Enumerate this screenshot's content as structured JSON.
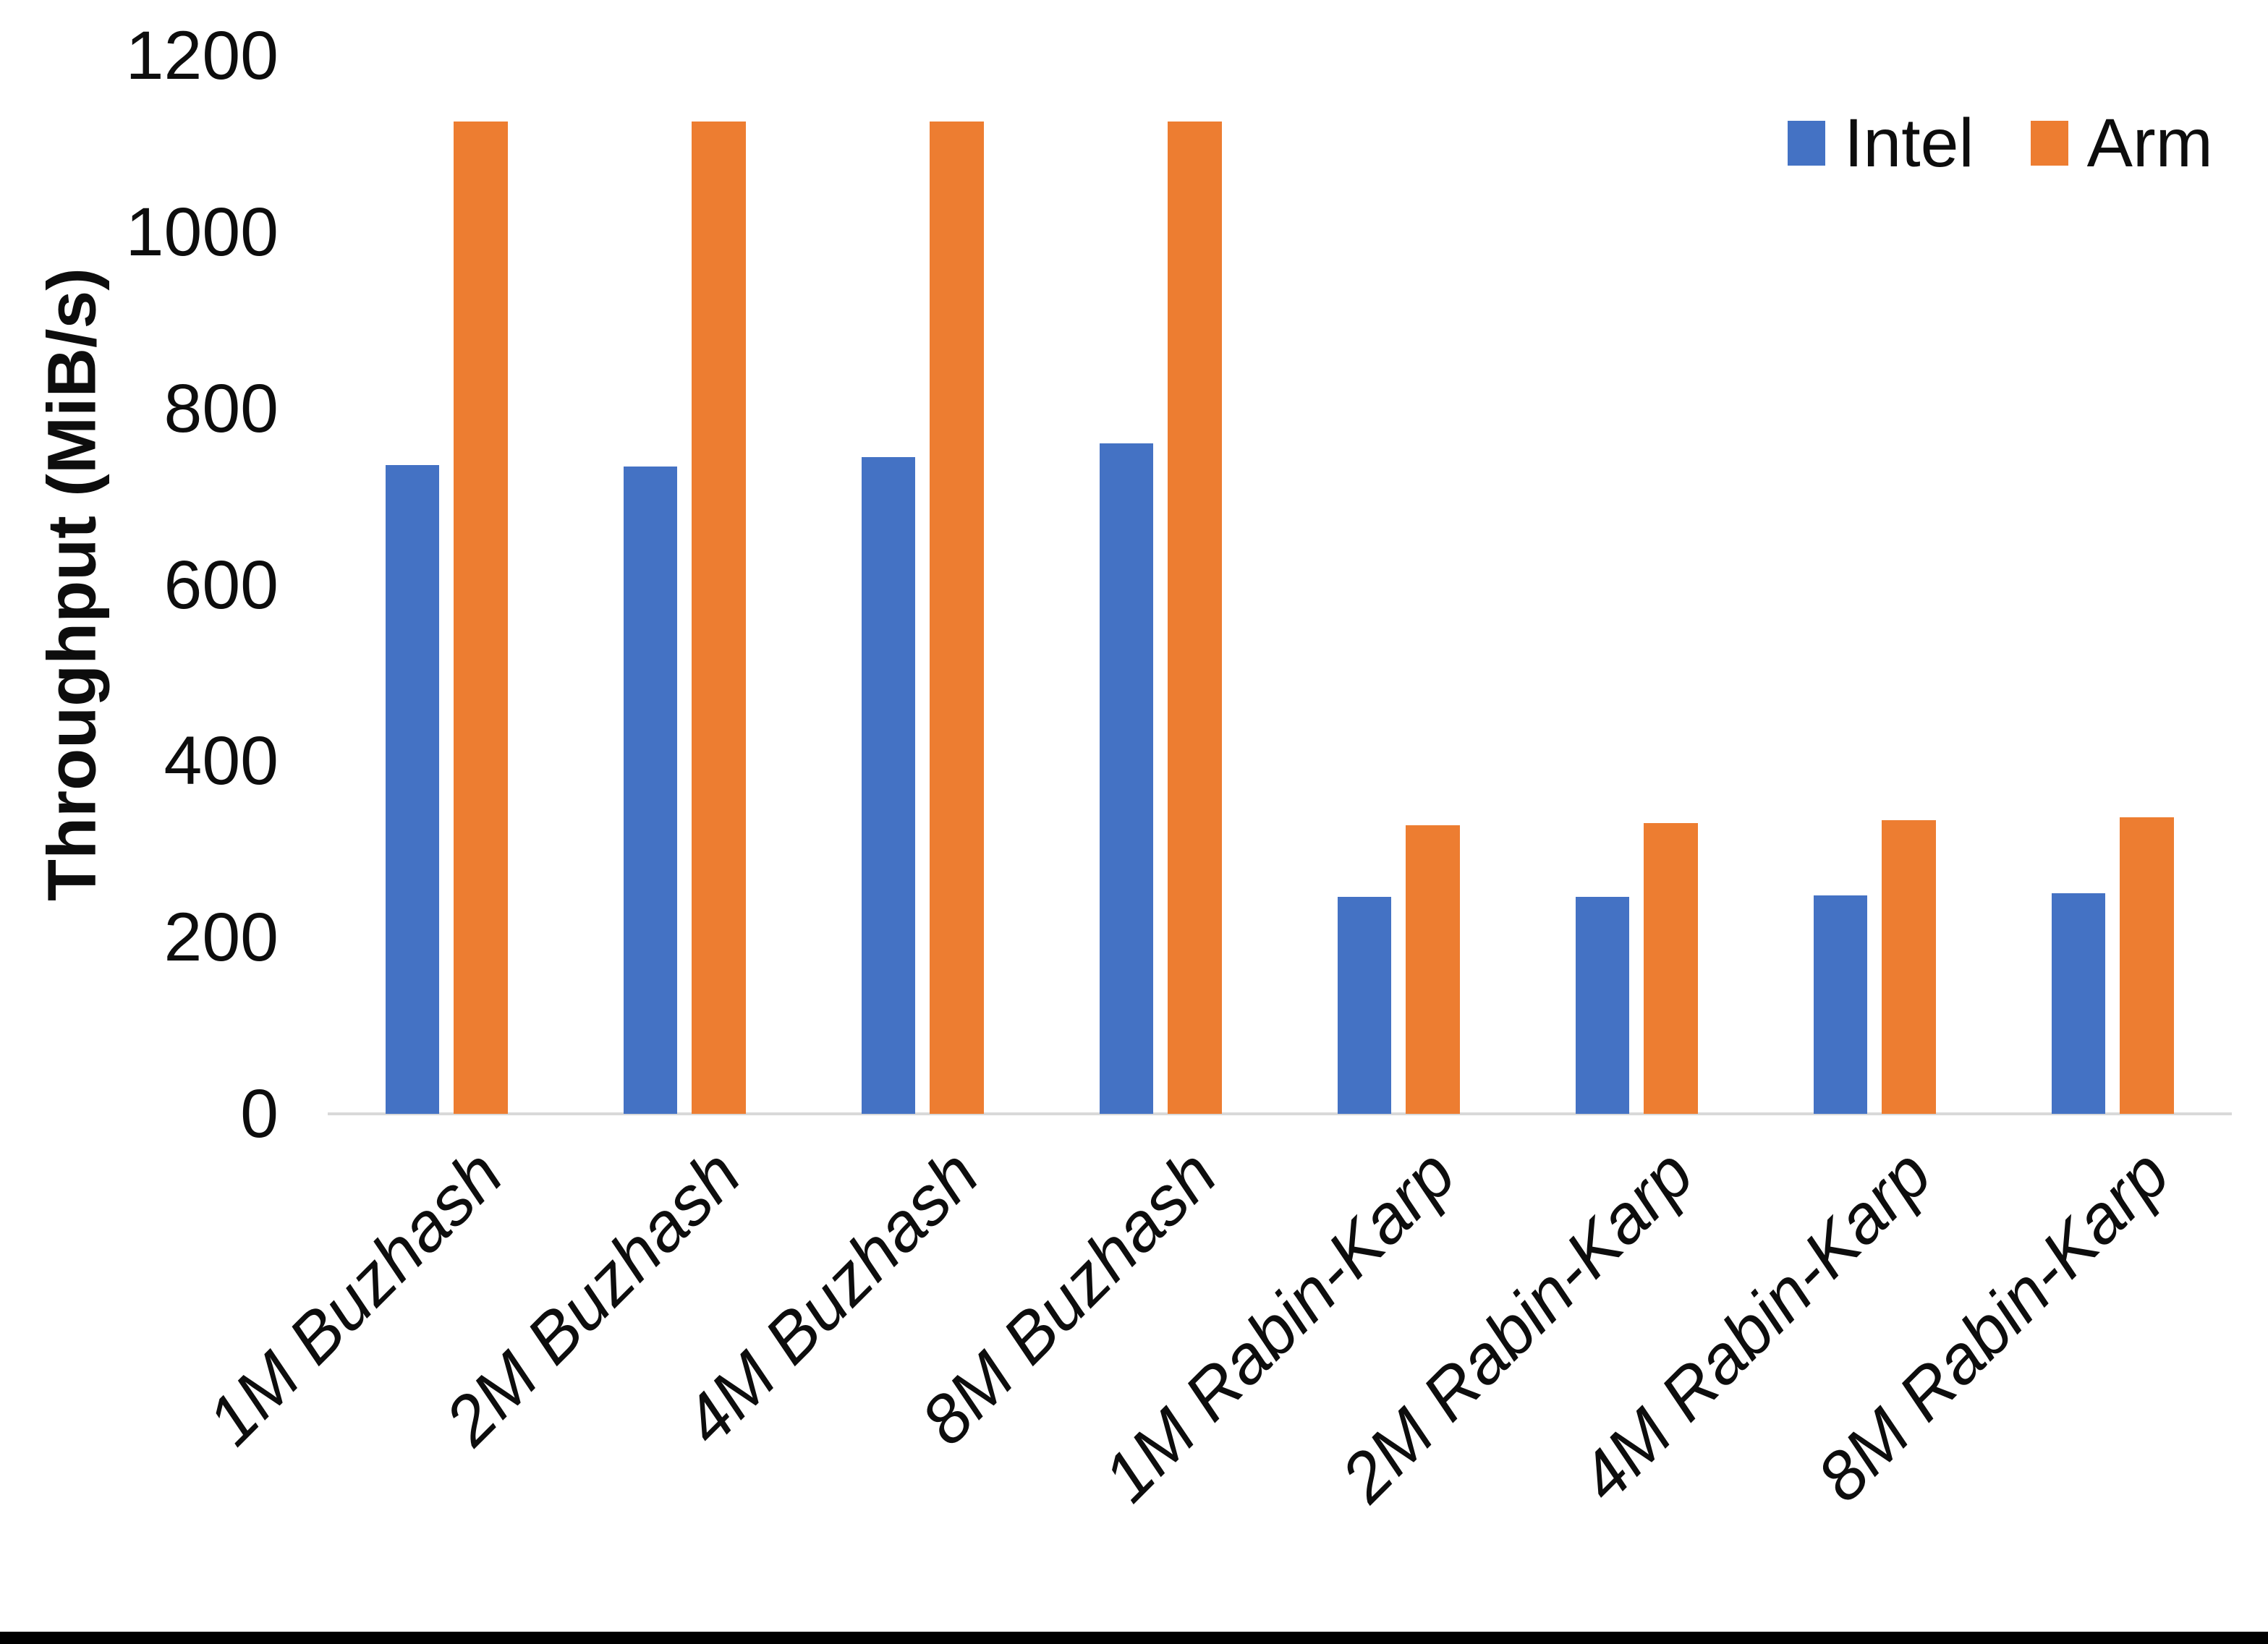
{
  "chart_data": {
    "type": "bar",
    "title": "",
    "xlabel": "",
    "ylabel": "Throughput (MiB/s)",
    "ylim": [
      0,
      1200
    ],
    "yticks": [
      0,
      200,
      400,
      600,
      800,
      1000,
      1200
    ],
    "grid": false,
    "legend_position": "top-right",
    "categories": [
      "1M Buzhash",
      "2M Buzhash",
      "4M Buzhash",
      "8M Buzhash",
      "1M Rabin-Karp",
      "2M Rabin-Karp",
      "4M Rabin-Karp",
      "8M Rabin-Karp"
    ],
    "series": [
      {
        "name": "Intel",
        "color": "#4472C4",
        "values": [
          736,
          734,
          745,
          760,
          246,
          246,
          248,
          250
        ]
      },
      {
        "name": "Arm",
        "color": "#ED7D31",
        "values": [
          1125,
          1125,
          1125,
          1125,
          327,
          330,
          333,
          336
        ]
      }
    ]
  },
  "colors": {
    "axis_line": "#d9d9d9",
    "text": "#0d0d0d",
    "bottom_stripe": "#000000"
  }
}
